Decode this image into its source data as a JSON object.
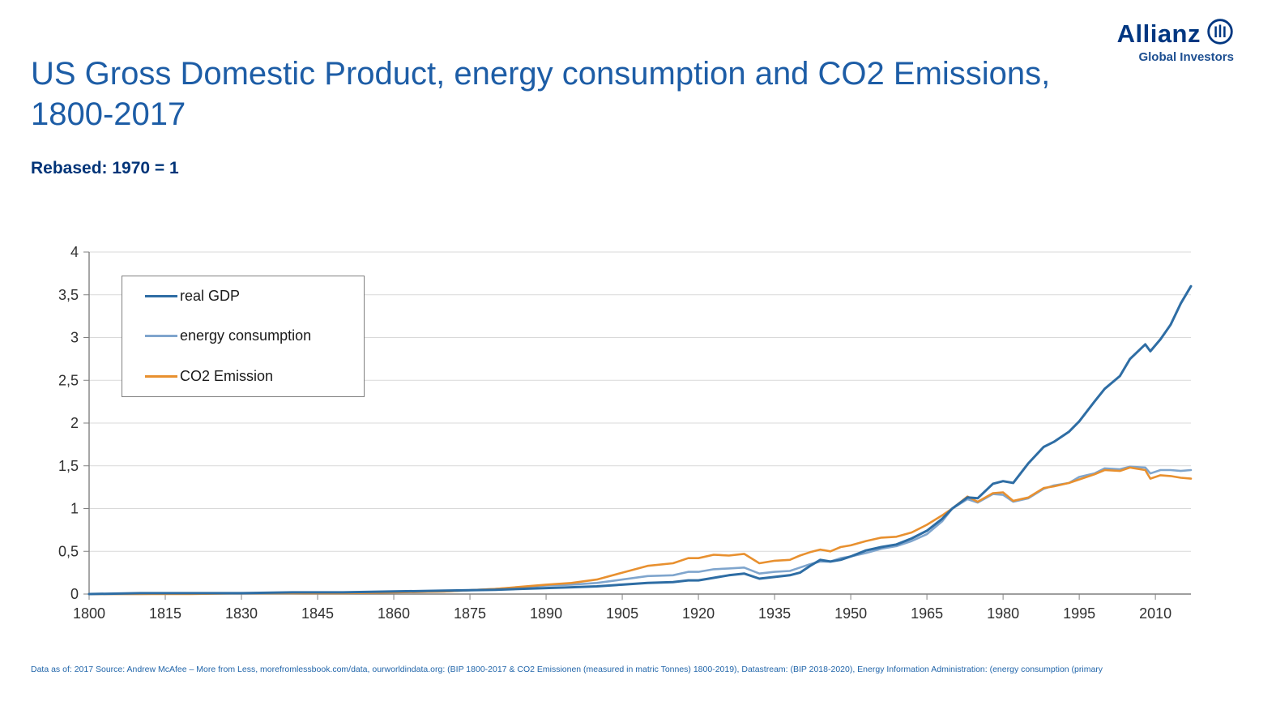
{
  "logo": {
    "brand": "Allianz",
    "subbrand": "Global Investors",
    "color": "#003781"
  },
  "header": {
    "title": "US Gross Domestic Product, energy consumption and CO2 Emissions, 1800-2017",
    "subtitle": "Rebased: 1970 = 1"
  },
  "chart_data": {
    "type": "line",
    "title": "US Gross Domestic Product, energy consumption and CO2 Emissions, 1800-2017",
    "subtitle": "Rebased: 1970 = 1",
    "xlabel": "",
    "ylabel": "",
    "x_range": [
      1800,
      2017
    ],
    "ylim": [
      0,
      4
    ],
    "grid": "horizontal",
    "legend_position": "top-left",
    "x_ticks": [
      1800,
      1815,
      1830,
      1845,
      1860,
      1875,
      1890,
      1905,
      1920,
      1935,
      1950,
      1965,
      1980,
      1995,
      2010
    ],
    "y_ticks": [
      {
        "value": 0,
        "label": "0"
      },
      {
        "value": 0.5,
        "label": "0,5"
      },
      {
        "value": 1,
        "label": "1"
      },
      {
        "value": 1.5,
        "label": "1,5"
      },
      {
        "value": 2,
        "label": "2"
      },
      {
        "value": 2.5,
        "label": "2,5"
      },
      {
        "value": 3,
        "label": "3"
      },
      {
        "value": 3.5,
        "label": "3,5"
      },
      {
        "value": 4,
        "label": "4"
      }
    ],
    "x": [
      1800,
      1810,
      1820,
      1830,
      1840,
      1850,
      1860,
      1870,
      1880,
      1890,
      1895,
      1900,
      1905,
      1910,
      1915,
      1918,
      1920,
      1923,
      1926,
      1929,
      1932,
      1935,
      1938,
      1940,
      1942,
      1944,
      1946,
      1948,
      1950,
      1953,
      1956,
      1959,
      1962,
      1965,
      1968,
      1970,
      1973,
      1975,
      1978,
      1980,
      1982,
      1985,
      1988,
      1990,
      1993,
      1995,
      1998,
      2000,
      2003,
      2005,
      2008,
      2009,
      2011,
      2013,
      2015,
      2017
    ],
    "series": [
      {
        "name": "real GDP",
        "color": "#2e6da4",
        "width": 3,
        "values": [
          0,
          0.01,
          0.01,
          0.01,
          0.02,
          0.02,
          0.03,
          0.04,
          0.05,
          0.07,
          0.08,
          0.09,
          0.11,
          0.13,
          0.14,
          0.16,
          0.16,
          0.19,
          0.22,
          0.24,
          0.18,
          0.2,
          0.22,
          0.25,
          0.33,
          0.4,
          0.38,
          0.4,
          0.44,
          0.51,
          0.55,
          0.58,
          0.65,
          0.74,
          0.88,
          1.0,
          1.13,
          1.12,
          1.29,
          1.32,
          1.3,
          1.53,
          1.72,
          1.78,
          1.9,
          2.02,
          2.25,
          2.4,
          2.55,
          2.75,
          2.92,
          2.84,
          2.98,
          3.15,
          3.4,
          3.6
        ]
      },
      {
        "name": "energy consumption",
        "color": "#7fa5cd",
        "width": 2.6,
        "values": [
          0,
          0,
          0.01,
          0.01,
          0.01,
          0.02,
          0.02,
          0.03,
          0.06,
          0.1,
          0.11,
          0.13,
          0.17,
          0.21,
          0.22,
          0.26,
          0.26,
          0.29,
          0.3,
          0.31,
          0.24,
          0.26,
          0.27,
          0.31,
          0.35,
          0.38,
          0.38,
          0.42,
          0.44,
          0.48,
          0.53,
          0.56,
          0.62,
          0.7,
          0.85,
          1.0,
          1.11,
          1.07,
          1.17,
          1.16,
          1.08,
          1.12,
          1.23,
          1.27,
          1.3,
          1.37,
          1.41,
          1.47,
          1.46,
          1.49,
          1.48,
          1.41,
          1.45,
          1.45,
          1.44,
          1.45
        ]
      },
      {
        "name": "CO2 Emission",
        "color": "#e8902f",
        "width": 2.6,
        "values": [
          0,
          0,
          0,
          0.01,
          0.01,
          0.01,
          0.02,
          0.03,
          0.06,
          0.11,
          0.13,
          0.17,
          0.25,
          0.33,
          0.36,
          0.42,
          0.42,
          0.46,
          0.45,
          0.47,
          0.36,
          0.39,
          0.4,
          0.45,
          0.49,
          0.52,
          0.5,
          0.55,
          0.57,
          0.62,
          0.66,
          0.67,
          0.72,
          0.81,
          0.92,
          1.0,
          1.14,
          1.08,
          1.18,
          1.19,
          1.09,
          1.13,
          1.24,
          1.26,
          1.3,
          1.34,
          1.4,
          1.45,
          1.44,
          1.48,
          1.45,
          1.35,
          1.39,
          1.38,
          1.36,
          1.35
        ]
      }
    ]
  },
  "footer": {
    "source": "Data as of: 2017 Source: Andrew McAfee – More from Less, morefromlessbook.com/data, ourworldindata.org: (BIP 1800-2017 & CO2 Emissionen (measured in matric Tonnes) 1800-2019), Datastream: (BIP 2018-2020), Energy Information Administration: (energy consumption (primary"
  }
}
